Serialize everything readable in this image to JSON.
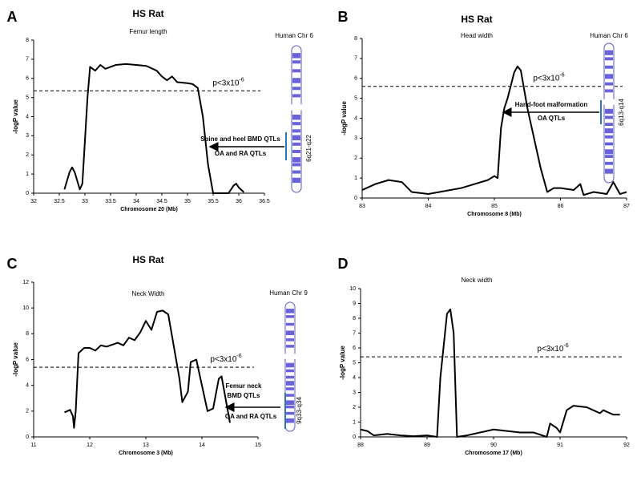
{
  "chart_data": [
    {
      "type": "line",
      "panel": "A",
      "title": "HS Rat",
      "subtitle": "Femur length",
      "x_label": "Chromosome 20 (Mb)",
      "y_label": "-logP value",
      "xlim": [
        32,
        36.5
      ],
      "xticks": [
        32,
        32.5,
        33,
        33.5,
        34,
        34.5,
        35,
        35.5,
        36,
        36.5
      ],
      "ylim": [
        0,
        8
      ],
      "yticks": [
        0,
        1,
        2,
        3,
        4,
        5,
        6,
        7,
        8
      ],
      "threshold": 5.35,
      "threshold_label": "p<3x10",
      "threshold_exponent": "-6",
      "color": "#000000",
      "x": [
        32.6,
        32.7,
        32.75,
        32.8,
        32.9,
        32.95,
        33.05,
        33.1,
        33.2,
        33.3,
        33.4,
        33.5,
        33.6,
        33.8,
        34.0,
        34.2,
        34.4,
        34.5,
        34.6,
        34.7,
        34.8,
        35.0,
        35.1,
        35.2,
        35.3,
        35.4,
        35.5,
        35.8,
        35.9,
        35.95,
        36.0,
        36.1
      ],
      "values": [
        0.2,
        1.1,
        1.35,
        1.1,
        0.2,
        0.5,
        5.0,
        6.6,
        6.4,
        6.7,
        6.5,
        6.6,
        6.7,
        6.75,
        6.7,
        6.65,
        6.4,
        6.1,
        5.9,
        6.1,
        5.8,
        5.75,
        5.7,
        5.5,
        4.0,
        1.5,
        0,
        0,
        0.4,
        0.5,
        0.3,
        0.05
      ],
      "chromosome_label": "Human Chr 6",
      "band_label": "6q21-q22",
      "qtl_labels": [
        "Spine and heel BMD QTLs",
        "OA and RA QTLs"
      ]
    },
    {
      "type": "line",
      "panel": "B",
      "title": "HS Rat",
      "subtitle": "Head width",
      "x_label": "Chromosome 8 (Mb)",
      "y_label": "-logP value",
      "xlim": [
        83,
        87
      ],
      "xticks": [
        83,
        84,
        85,
        86,
        87
      ],
      "ylim": [
        0,
        8
      ],
      "yticks": [
        0,
        1,
        2,
        3,
        4,
        5,
        6,
        7,
        8
      ],
      "threshold": 5.6,
      "threshold_label": "p<3x10",
      "threshold_exponent": "-6",
      "color": "#000000",
      "x": [
        83,
        83.2,
        83.4,
        83.6,
        83.75,
        84,
        84.5,
        84.9,
        85.0,
        85.05,
        85.1,
        85.15,
        85.2,
        85.3,
        85.35,
        85.4,
        85.5,
        85.6,
        85.7,
        85.8,
        85.9,
        86,
        86.2,
        86.3,
        86.35,
        86.5,
        86.7,
        86.8,
        86.9,
        87
      ],
      "values": [
        0.4,
        0.7,
        0.9,
        0.8,
        0.3,
        0.2,
        0.5,
        0.9,
        1.1,
        1.0,
        3.5,
        4.5,
        5.0,
        6.3,
        6.6,
        6.4,
        4.5,
        3.0,
        1.5,
        0.3,
        0.5,
        0.5,
        0.4,
        0.7,
        0.15,
        0.3,
        0.2,
        0.8,
        0.2,
        0.3
      ],
      "chromosome_label": "Human Chr 6",
      "band_label": "6q13-q14",
      "qtl_labels": [
        "Hand-foot  malformation",
        "OA QTLs"
      ]
    },
    {
      "type": "line",
      "panel": "C",
      "title": "HS Rat",
      "subtitle": "Neck Width",
      "x_label": "Chromosome 3 (Mb)",
      "y_label": "-logP value",
      "xlim": [
        11,
        15
      ],
      "xticks": [
        11,
        12,
        13,
        14,
        15
      ],
      "ylim": [
        0,
        12
      ],
      "yticks": [
        0,
        2,
        4,
        6,
        8,
        10,
        12
      ],
      "threshold": 5.4,
      "threshold_label": "p<3x10",
      "threshold_exponent": "-6",
      "color": "#000000",
      "x": [
        11.55,
        11.65,
        11.7,
        11.72,
        11.75,
        11.8,
        11.9,
        12.0,
        12.1,
        12.2,
        12.3,
        12.5,
        12.6,
        12.7,
        12.8,
        12.9,
        13.0,
        13.1,
        13.2,
        13.3,
        13.4,
        13.5,
        13.6,
        13.65,
        13.75,
        13.8,
        13.9,
        14.0,
        14.1,
        14.2,
        14.3,
        14.35,
        14.4,
        14.5
      ],
      "values": [
        1.9,
        2.1,
        1.6,
        0.7,
        2.0,
        6.5,
        6.9,
        6.9,
        6.7,
        7.1,
        7.0,
        7.3,
        7.1,
        7.7,
        7.5,
        8.1,
        9.0,
        8.3,
        9.7,
        9.8,
        9.5,
        7.0,
        4.5,
        2.7,
        3.5,
        5.8,
        6.0,
        4.0,
        2.0,
        2.2,
        4.5,
        4.7,
        3.5,
        1.1
      ],
      "chromosome_label": "Human Chr 9",
      "band_label": "9q33-q34",
      "qtl_labels": [
        "Femur neck",
        "BMD QTLs",
        "OA and RA QTLs"
      ]
    },
    {
      "type": "line",
      "panel": "D",
      "subtitle": "Neck width",
      "x_label": "Chromosome 17 (Mb)",
      "y_label": "-logP value",
      "xlim": [
        88,
        92
      ],
      "xticks": [
        88,
        89,
        90,
        91,
        92
      ],
      "ylim": [
        0,
        10
      ],
      "yticks": [
        0,
        1,
        2,
        3,
        4,
        5,
        6,
        7,
        8,
        9,
        10
      ],
      "threshold": 5.4,
      "threshold_label": "p<3x10",
      "threshold_exponent": "-6",
      "color": "#000000",
      "x": [
        88,
        88.1,
        88.2,
        88.4,
        88.6,
        88.8,
        89.0,
        89.15,
        89.2,
        89.3,
        89.35,
        89.4,
        89.45,
        89.6,
        89.8,
        90.0,
        90.2,
        90.4,
        90.6,
        90.8,
        90.85,
        90.95,
        91.0,
        91.1,
        91.2,
        91.4,
        91.6,
        91.65,
        91.8,
        91.9
      ],
      "values": [
        0.5,
        0.4,
        0.1,
        0.2,
        0.1,
        0.05,
        0.1,
        0.0,
        4.0,
        8.3,
        8.6,
        7.0,
        0.0,
        0.1,
        0.3,
        0.5,
        0.4,
        0.3,
        0.3,
        0.0,
        0.9,
        0.6,
        0.3,
        1.8,
        2.1,
        2.0,
        1.6,
        1.8,
        1.5,
        1.5
      ]
    }
  ]
}
